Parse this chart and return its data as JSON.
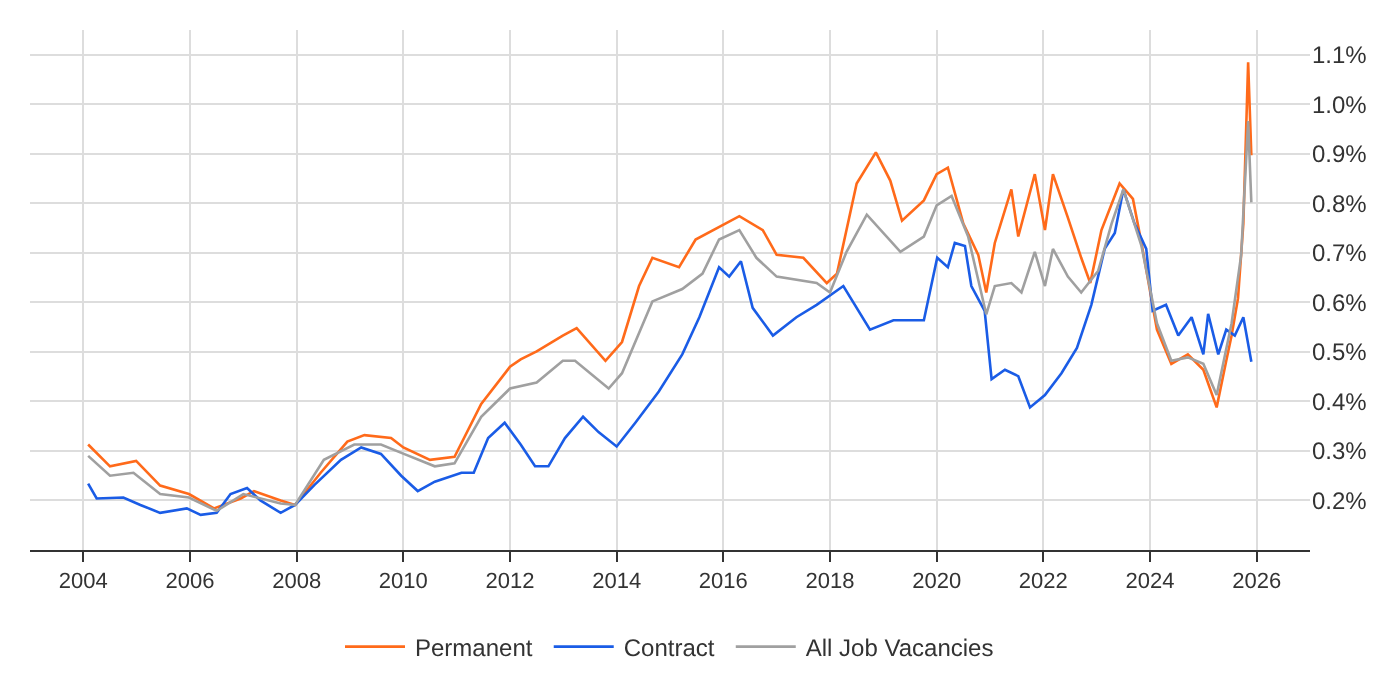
{
  "chart_data": {
    "type": "line",
    "xlim": [
      2003,
      2027
    ],
    "xticks": [
      2004,
      2006,
      2008,
      2010,
      2012,
      2014,
      2016,
      2018,
      2020,
      2022,
      2024,
      2026
    ],
    "ylim": [
      0.1,
      1.15
    ],
    "yticks": [
      {
        "value": 0.2,
        "label": "0.2%"
      },
      {
        "value": 0.3,
        "label": "0.3%"
      },
      {
        "value": 0.4,
        "label": "0.4%"
      },
      {
        "value": 0.5,
        "label": "0.5%"
      },
      {
        "value": 0.6,
        "label": "0.6%"
      },
      {
        "value": 0.7,
        "label": "0.7%"
      },
      {
        "value": 0.8,
        "label": "0.8%"
      },
      {
        "value": 0.9,
        "label": "0.9%"
      },
      {
        "value": 1.0,
        "label": "1.0%"
      },
      {
        "value": 1.1,
        "label": "1.1%"
      }
    ],
    "grid": true,
    "legend": "bottom",
    "marker": "none",
    "line_style": "solid",
    "series": [
      {
        "name": "Permanent",
        "color": "#ff6a1a",
        "x": [
          2004.09,
          2004.5,
          2004.99,
          2005.44,
          2005.98,
          2006.45,
          2006.95,
          2007.2,
          2007.7,
          2007.97,
          2008.45,
          2008.95,
          2009.27,
          2009.77,
          2010.0,
          2010.5,
          2010.96,
          2011.46,
          2012.0,
          2012.2,
          2012.5,
          2012.99,
          2013.25,
          2013.79,
          2014.1,
          2014.42,
          2014.67,
          2015.17,
          2015.48,
          2016.3,
          2016.74,
          2017.0,
          2017.5,
          2017.94,
          2018.13,
          2018.5,
          2018.86,
          2019.13,
          2019.35,
          2019.76,
          2020.0,
          2020.21,
          2020.5,
          2020.78,
          2020.93,
          2021.09,
          2021.4,
          2021.53,
          2021.84,
          2022.03,
          2022.18,
          2022.46,
          2022.71,
          2022.88,
          2023.09,
          2023.43,
          2023.68,
          2023.84,
          2024.13,
          2024.4,
          2024.71,
          2025.0,
          2025.25,
          2025.43,
          2025.53,
          2025.65,
          2025.75,
          2025.84,
          2025.9
        ],
        "values": [
          0.313,
          0.269,
          0.28,
          0.23,
          0.213,
          0.184,
          0.204,
          0.219,
          0.2,
          0.191,
          0.256,
          0.319,
          0.332,
          0.326,
          0.307,
          0.282,
          0.288,
          0.395,
          0.47,
          0.485,
          0.501,
          0.533,
          0.548,
          0.482,
          0.52,
          0.633,
          0.69,
          0.671,
          0.727,
          0.774,
          0.746,
          0.696,
          0.69,
          0.639,
          0.658,
          0.84,
          0.903,
          0.846,
          0.765,
          0.806,
          0.859,
          0.872,
          0.759,
          0.696,
          0.62,
          0.72,
          0.828,
          0.733,
          0.859,
          0.746,
          0.859,
          0.771,
          0.69,
          0.639,
          0.746,
          0.84,
          0.809,
          0.72,
          0.545,
          0.476,
          0.495,
          0.464,
          0.388,
          0.482,
          0.533,
          0.608,
          0.759,
          1.085,
          0.897
        ]
      },
      {
        "name": "Contract",
        "color": "#1a5ce6",
        "x": [
          2004.09,
          2004.25,
          2004.75,
          2005.07,
          2005.44,
          2005.94,
          2006.2,
          2006.5,
          2006.76,
          2007.07,
          2007.32,
          2007.7,
          2007.97,
          2008.33,
          2008.83,
          2009.21,
          2009.58,
          2009.96,
          2010.27,
          2010.59,
          2011.09,
          2011.32,
          2011.59,
          2011.9,
          2012.2,
          2012.47,
          2012.72,
          2013.03,
          2013.37,
          2013.66,
          2014.0,
          2014.35,
          2014.79,
          2015.23,
          2015.55,
          2015.92,
          2016.11,
          2016.33,
          2016.55,
          2016.93,
          2017.37,
          2017.75,
          2018.25,
          2018.75,
          2019.19,
          2019.76,
          2020.01,
          2020.21,
          2020.34,
          2020.53,
          2020.65,
          2020.9,
          2021.03,
          2021.28,
          2021.53,
          2021.75,
          2022.03,
          2022.34,
          2022.63,
          2022.9,
          2023.15,
          2023.34,
          2023.5,
          2023.71,
          2023.93,
          2024.05,
          2024.3,
          2024.53,
          2024.78,
          2025.0,
          2025.09,
          2025.28,
          2025.43,
          2025.59,
          2025.75,
          2025.9
        ],
        "values": [
          0.234,
          0.204,
          0.206,
          0.191,
          0.175,
          0.184,
          0.171,
          0.175,
          0.213,
          0.225,
          0.2,
          0.175,
          0.191,
          0.231,
          0.282,
          0.307,
          0.294,
          0.25,
          0.219,
          0.238,
          0.256,
          0.256,
          0.326,
          0.357,
          0.313,
          0.269,
          0.269,
          0.326,
          0.369,
          0.338,
          0.309,
          0.357,
          0.42,
          0.495,
          0.57,
          0.671,
          0.652,
          0.683,
          0.589,
          0.533,
          0.57,
          0.595,
          0.633,
          0.545,
          0.564,
          0.564,
          0.69,
          0.671,
          0.72,
          0.714,
          0.633,
          0.583,
          0.445,
          0.464,
          0.451,
          0.388,
          0.413,
          0.457,
          0.508,
          0.595,
          0.708,
          0.74,
          0.828,
          0.759,
          0.708,
          0.583,
          0.595,
          0.533,
          0.57,
          0.495,
          0.577,
          0.495,
          0.545,
          0.533,
          0.57,
          0.48
        ]
      },
      {
        "name": "All Job Vacancies",
        "color": "#a0a0a0",
        "x": [
          2004.09,
          2004.5,
          2004.94,
          2005.44,
          2005.98,
          2006.5,
          2007.0,
          2007.7,
          2007.97,
          2008.51,
          2009.08,
          2009.58,
          2010.01,
          2010.59,
          2010.96,
          2011.46,
          2012.0,
          2012.5,
          2012.99,
          2013.22,
          2013.85,
          2014.1,
          2014.67,
          2015.23,
          2015.61,
          2015.92,
          2016.3,
          2016.62,
          2017.0,
          2017.75,
          2018.0,
          2018.31,
          2018.69,
          2019.32,
          2019.76,
          2020.0,
          2020.28,
          2020.59,
          2020.93,
          2021.09,
          2021.4,
          2021.59,
          2021.84,
          2022.03,
          2022.18,
          2022.46,
          2022.71,
          2023.03,
          2023.28,
          2023.5,
          2023.84,
          2024.13,
          2024.4,
          2024.71,
          2025.0,
          2025.25,
          2025.53,
          2025.71,
          2025.84,
          2025.9
        ],
        "values": [
          0.29,
          0.25,
          0.256,
          0.213,
          0.206,
          0.179,
          0.213,
          0.194,
          0.191,
          0.282,
          0.313,
          0.313,
          0.294,
          0.269,
          0.275,
          0.369,
          0.426,
          0.438,
          0.482,
          0.482,
          0.426,
          0.457,
          0.602,
          0.627,
          0.658,
          0.727,
          0.746,
          0.69,
          0.652,
          0.639,
          0.62,
          0.702,
          0.777,
          0.702,
          0.733,
          0.796,
          0.815,
          0.733,
          0.576,
          0.633,
          0.639,
          0.62,
          0.702,
          0.633,
          0.708,
          0.652,
          0.62,
          0.664,
          0.759,
          0.828,
          0.714,
          0.558,
          0.482,
          0.489,
          0.476,
          0.413,
          0.558,
          0.696,
          0.966,
          0.802
        ]
      }
    ]
  }
}
